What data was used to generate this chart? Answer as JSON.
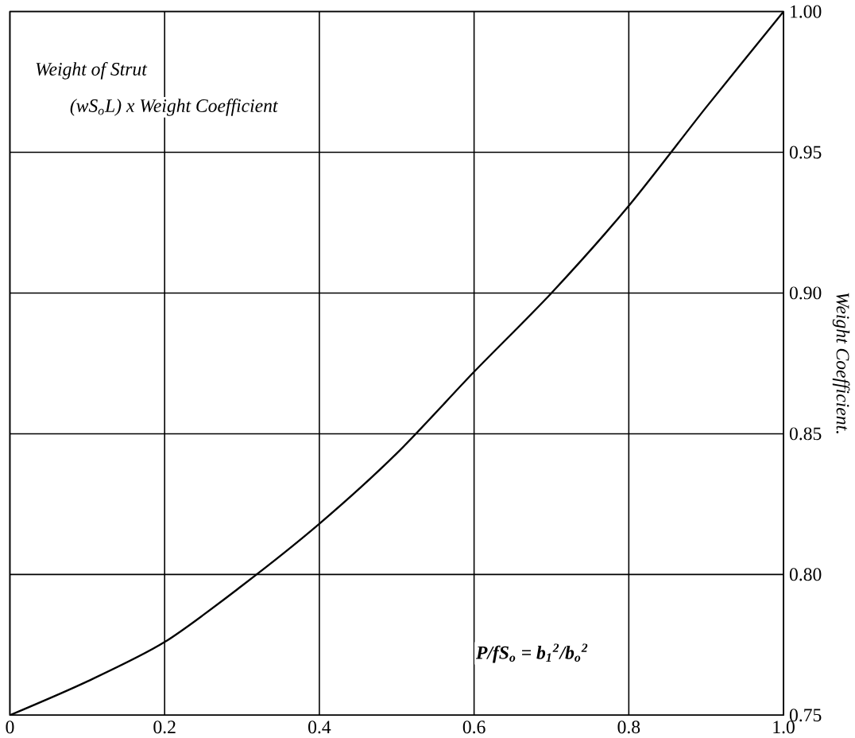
{
  "chart_data": {
    "type": "line",
    "ylabel": "Weight Coefficient.",
    "annotations": [
      "Weight of Strut",
      "(wS$_{o}$L) x Weight Coefficient",
      "P/fS$_{o}$ = b$_{1}$$^{2}$/b$_{o}$$^{2}$"
    ],
    "x": [
      0,
      0.1,
      0.2,
      0.3,
      0.4,
      0.5,
      0.6,
      0.7,
      0.8,
      0.9,
      1.0
    ],
    "values": [
      0.75,
      0.762,
      0.776,
      0.796,
      0.818,
      0.843,
      0.872,
      0.9,
      0.931,
      0.966,
      1.0
    ],
    "color": "#000000",
    "xlim": [
      0,
      1
    ],
    "ylim": [
      0.75,
      1.0
    ],
    "xticks": [
      0,
      0.2,
      0.4,
      0.6,
      0.8,
      {
        "value": 1.0,
        "label": "1.0"
      }
    ],
    "yticks": [
      0.75,
      {
        "value": 0.8,
        "label": "0.80"
      },
      0.85,
      {
        "value": 0.9,
        "label": "0.90"
      },
      0.95,
      {
        "value": 1.0,
        "label": "1.00"
      }
    ],
    "grid": true
  }
}
